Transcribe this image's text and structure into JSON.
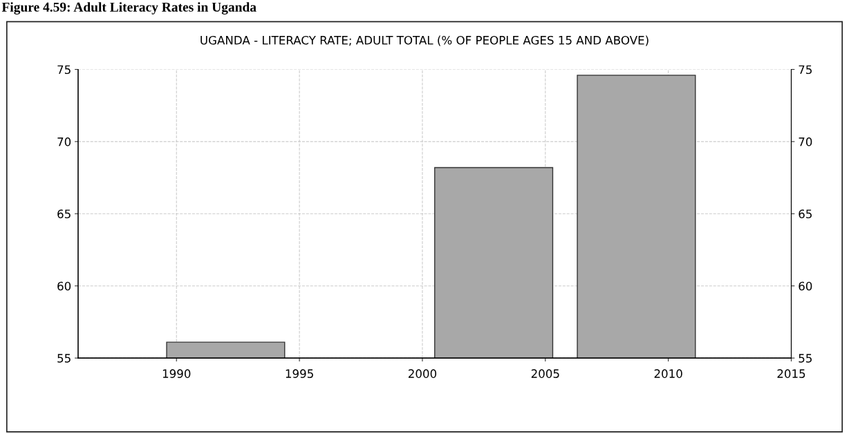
{
  "chart_data": {
    "type": "bar",
    "title": "Figure 4.59: Adult Literacy Rates in Uganda",
    "subtitle": "UGANDA - LITERACY RATE; ADULT TOTAL (% OF PEOPLE AGES 15 AND ABOVE)",
    "x": [
      1992,
      2002.9,
      2008.7
    ],
    "series": [
      {
        "color": "#a8a8a8",
        "values": [
          56.1,
          68.2,
          74.6
        ]
      }
    ],
    "xlim": [
      1986,
      2015
    ],
    "xticks": [
      1990,
      1995,
      2000,
      2005,
      2010,
      2015
    ],
    "ylim": [
      55,
      75
    ],
    "yticks": [
      55,
      60,
      65,
      70,
      75
    ],
    "y2lim": [
      55,
      75
    ],
    "y2ticks": [
      55,
      60,
      65,
      70,
      75
    ],
    "grid": true
  }
}
